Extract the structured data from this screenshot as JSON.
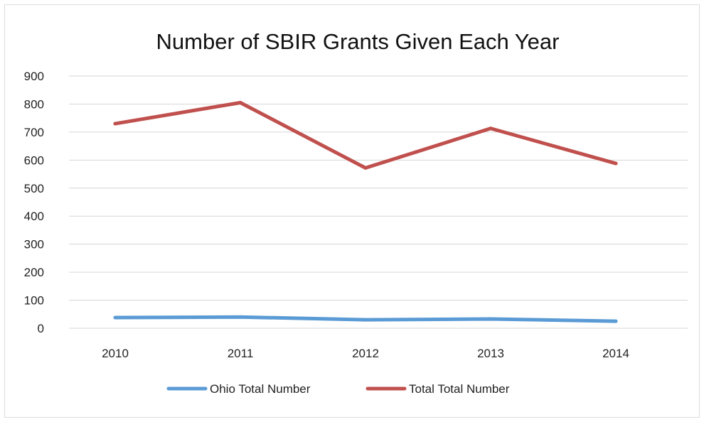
{
  "chart_data": {
    "type": "line",
    "title": "Number of SBIR Grants Given Each Year",
    "categories": [
      "2010",
      "2011",
      "2012",
      "2013",
      "2014"
    ],
    "yticks": [
      "0",
      "100",
      "200",
      "300",
      "400",
      "500",
      "600",
      "700",
      "800",
      "900"
    ],
    "ylim": [
      0,
      900
    ],
    "grid": true,
    "legend_position": "bottom",
    "series": [
      {
        "name": "Ohio Total Number",
        "color": "#5b9bd5",
        "values": [
          38,
          40,
          30,
          33,
          25
        ]
      },
      {
        "name": "Total Total Number",
        "color": "#c0504d",
        "values": [
          730,
          805,
          572,
          713,
          588
        ]
      }
    ]
  }
}
